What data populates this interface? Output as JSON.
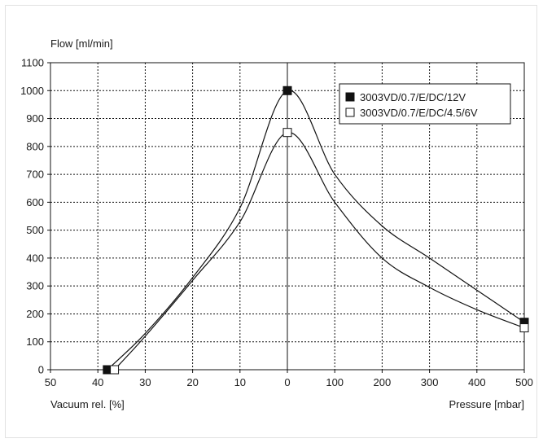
{
  "chart_data": {
    "type": "line",
    "ylabel": "Flow [ml/min]",
    "xlabel_left": "Vacuum rel. [%]",
    "xlabel_right": "Pressure [mbar]",
    "ylim": [
      0,
      1100
    ],
    "y_ticks": [
      "0",
      "100",
      "200",
      "300",
      "400",
      "500",
      "600",
      "700",
      "800",
      "900",
      "1000",
      "1100"
    ],
    "vacuum_ticks": [
      "50",
      "40",
      "30",
      "20",
      "10",
      "0"
    ],
    "pressure_ticks": [
      "100",
      "200",
      "300",
      "400",
      "500"
    ],
    "grid": true,
    "legend_position": "top-right",
    "series": [
      {
        "name": "3003VD/0.7/E/DC/12V",
        "marker": "filled-square",
        "color": "#111111",
        "vacuum_points": [
          [
            38,
            0
          ],
          [
            30,
            130
          ],
          [
            20,
            330
          ],
          [
            10,
            580
          ],
          [
            0,
            1000
          ]
        ],
        "pressure_points": [
          [
            0,
            1000
          ],
          [
            100,
            700
          ],
          [
            200,
            515
          ],
          [
            300,
            400
          ],
          [
            400,
            285
          ],
          [
            500,
            170
          ]
        ]
      },
      {
        "name": "3003VD/0.7/E/DC/4.5/6V",
        "marker": "open-square",
        "color": "#111111",
        "vacuum_points": [
          [
            36.5,
            0
          ],
          [
            30,
            120
          ],
          [
            20,
            320
          ],
          [
            10,
            530
          ],
          [
            0,
            850
          ]
        ],
        "pressure_points": [
          [
            0,
            850
          ],
          [
            100,
            600
          ],
          [
            200,
            400
          ],
          [
            300,
            295
          ],
          [
            400,
            215
          ],
          [
            500,
            150
          ]
        ]
      }
    ]
  }
}
